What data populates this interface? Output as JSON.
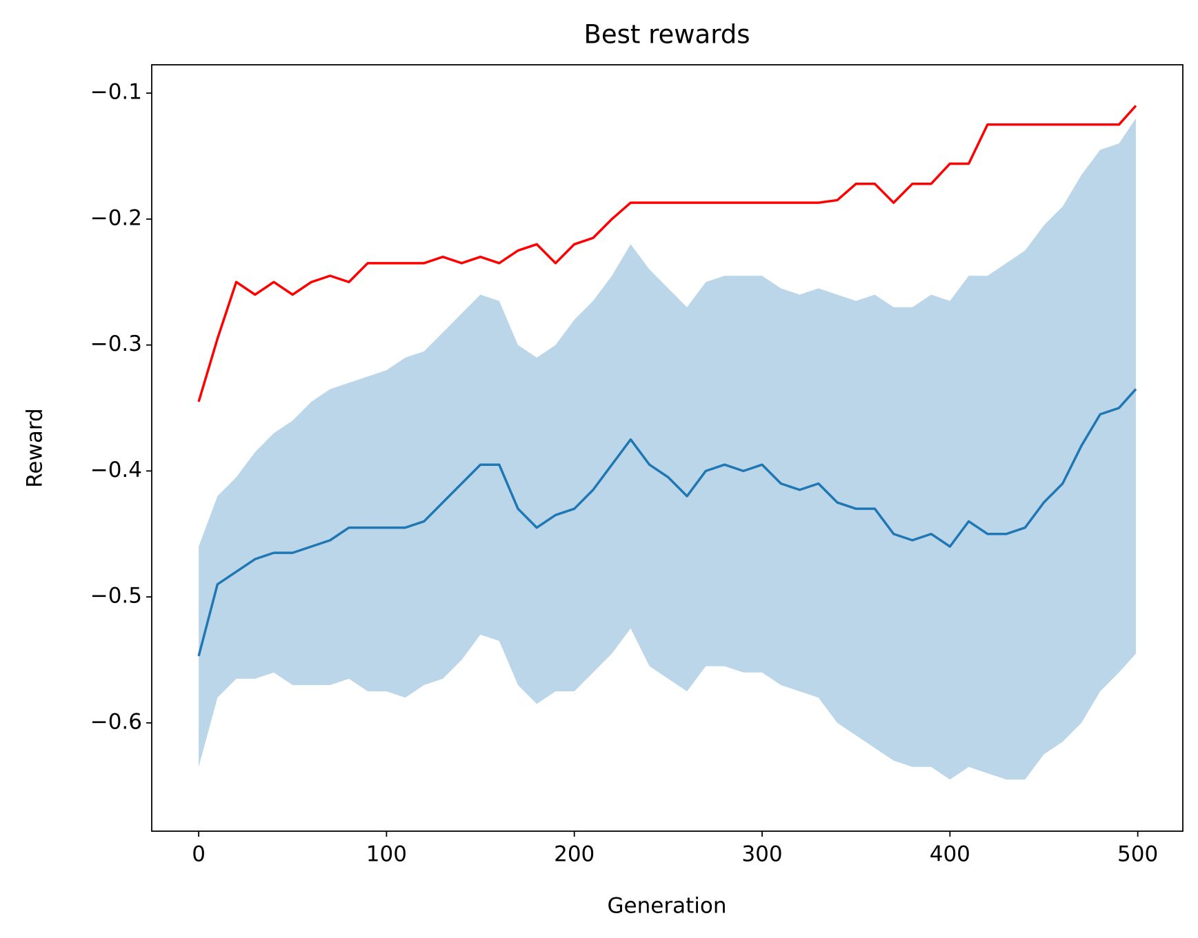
{
  "chart_data": {
    "type": "line",
    "title": "Best rewards",
    "x_label": "Generation",
    "y_label": "Reward",
    "x": [
      0,
      10,
      20,
      30,
      40,
      50,
      60,
      70,
      80,
      90,
      100,
      110,
      120,
      130,
      140,
      150,
      160,
      170,
      180,
      190,
      200,
      210,
      220,
      230,
      240,
      250,
      260,
      270,
      280,
      290,
      300,
      310,
      320,
      330,
      340,
      350,
      360,
      370,
      380,
      390,
      400,
      410,
      420,
      430,
      440,
      450,
      460,
      470,
      480,
      490,
      499
    ],
    "series": [
      {
        "color": "#ff0000",
        "values": [
          -0.345,
          -0.295,
          -0.25,
          -0.26,
          -0.25,
          -0.26,
          -0.25,
          -0.245,
          -0.25,
          -0.235,
          -0.235,
          -0.235,
          -0.235,
          -0.23,
          -0.235,
          -0.23,
          -0.235,
          -0.225,
          -0.22,
          -0.235,
          -0.22,
          -0.215,
          -0.2,
          -0.187,
          -0.187,
          -0.187,
          -0.187,
          -0.187,
          -0.187,
          -0.187,
          -0.187,
          -0.187,
          -0.187,
          -0.187,
          -0.185,
          -0.172,
          -0.172,
          -0.187,
          -0.172,
          -0.172,
          -0.156,
          -0.156,
          -0.125,
          -0.125,
          -0.125,
          -0.125,
          -0.125,
          -0.125,
          -0.125,
          -0.125,
          -0.11
        ]
      },
      {
        "color": "#1f77b4",
        "values": [
          -0.547,
          -0.49,
          -0.48,
          -0.47,
          -0.465,
          -0.465,
          -0.46,
          -0.455,
          -0.445,
          -0.445,
          -0.445,
          -0.445,
          -0.44,
          -0.425,
          -0.41,
          -0.395,
          -0.395,
          -0.43,
          -0.445,
          -0.435,
          -0.43,
          -0.415,
          -0.395,
          -0.375,
          -0.395,
          -0.405,
          -0.42,
          -0.4,
          -0.395,
          -0.4,
          -0.395,
          -0.41,
          -0.415,
          -0.41,
          -0.425,
          -0.43,
          -0.43,
          -0.45,
          -0.455,
          -0.45,
          -0.46,
          -0.44,
          -0.45,
          -0.45,
          -0.445,
          -0.425,
          -0.41,
          -0.38,
          -0.355,
          -0.35,
          -0.335
        ]
      }
    ],
    "band": {
      "color": "#1f77b4",
      "alpha": 0.3,
      "upper": [
        -0.46,
        -0.42,
        -0.405,
        -0.385,
        -0.37,
        -0.36,
        -0.345,
        -0.335,
        -0.33,
        -0.325,
        -0.32,
        -0.31,
        -0.305,
        -0.29,
        -0.275,
        -0.26,
        -0.265,
        -0.3,
        -0.31,
        -0.3,
        -0.28,
        -0.265,
        -0.245,
        -0.22,
        -0.24,
        -0.255,
        -0.27,
        -0.25,
        -0.245,
        -0.245,
        -0.245,
        -0.255,
        -0.26,
        -0.255,
        -0.26,
        -0.265,
        -0.26,
        -0.27,
        -0.27,
        -0.26,
        -0.265,
        -0.245,
        -0.245,
        -0.235,
        -0.225,
        -0.205,
        -0.19,
        -0.165,
        -0.145,
        -0.14,
        -0.12
      ],
      "lower": [
        -0.635,
        -0.58,
        -0.565,
        -0.565,
        -0.56,
        -0.57,
        -0.57,
        -0.57,
        -0.565,
        -0.575,
        -0.575,
        -0.58,
        -0.57,
        -0.565,
        -0.55,
        -0.53,
        -0.535,
        -0.57,
        -0.585,
        -0.575,
        -0.575,
        -0.56,
        -0.545,
        -0.525,
        -0.555,
        -0.565,
        -0.575,
        -0.555,
        -0.555,
        -0.56,
        -0.56,
        -0.57,
        -0.575,
        -0.58,
        -0.6,
        -0.61,
        -0.62,
        -0.63,
        -0.635,
        -0.635,
        -0.645,
        -0.635,
        -0.64,
        -0.645,
        -0.645,
        -0.625,
        -0.615,
        -0.6,
        -0.575,
        -0.56,
        -0.545
      ]
    },
    "xlim": [
      -25,
      524
    ],
    "ylim": [
      -0.686,
      -0.0775
    ],
    "xticks": [
      0,
      100,
      200,
      300,
      400,
      500
    ],
    "yticks": [
      {
        "value": -0.1,
        "label": "−0.1"
      },
      {
        "value": -0.2,
        "label": "−0.2"
      },
      {
        "value": -0.3,
        "label": "−0.3"
      },
      {
        "value": -0.4,
        "label": "−0.4"
      },
      {
        "value": -0.5,
        "label": "−0.5"
      },
      {
        "value": -0.6,
        "label": "−0.6"
      }
    ]
  }
}
